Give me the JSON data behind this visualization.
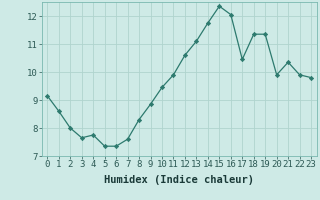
{
  "x": [
    0,
    1,
    2,
    3,
    4,
    5,
    6,
    7,
    8,
    9,
    10,
    11,
    12,
    13,
    14,
    15,
    16,
    17,
    18,
    19,
    20,
    21,
    22,
    23
  ],
  "y": [
    9.15,
    8.6,
    8.0,
    7.65,
    7.75,
    7.35,
    7.35,
    7.6,
    8.3,
    8.85,
    9.45,
    9.9,
    10.6,
    11.1,
    11.75,
    12.35,
    12.05,
    10.45,
    11.35,
    11.35,
    9.9,
    10.35,
    9.9,
    9.8
  ],
  "line_color": "#2d7a6e",
  "marker": "D",
  "marker_size": 2.2,
  "bg_color": "#ceeae6",
  "grid_color": "#b0d4ce",
  "xlabel": "Humidex (Indice chaleur)",
  "xlabel_fontsize": 7.5,
  "tick_fontsize": 6.5,
  "ylim": [
    7.0,
    12.5
  ],
  "xlim": [
    -0.5,
    23.5
  ],
  "yticks": [
    7,
    8,
    9,
    10,
    11,
    12
  ],
  "xticks": [
    0,
    1,
    2,
    3,
    4,
    5,
    6,
    7,
    8,
    9,
    10,
    11,
    12,
    13,
    14,
    15,
    16,
    17,
    18,
    19,
    20,
    21,
    22,
    23
  ]
}
